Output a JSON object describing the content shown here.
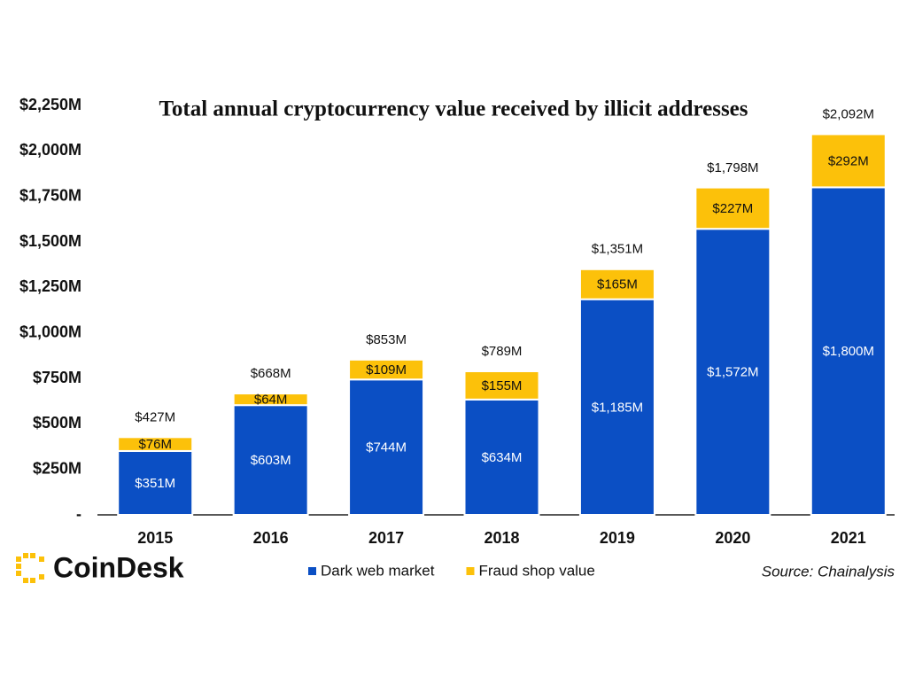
{
  "brand": "CoinDesk",
  "chart_data": {
    "type": "stacked_bar",
    "title": "Total annual cryptocurrency value received by illicit addresses",
    "source": "Source: Chainalysis",
    "categories": [
      "2015",
      "2016",
      "2017",
      "2018",
      "2019",
      "2020",
      "2021"
    ],
    "series": [
      {
        "name": "Dark web market",
        "color": "#0b4fc4",
        "values": [
          351,
          603,
          744,
          634,
          1185,
          1572,
          1800
        ],
        "value_labels": [
          "$351M",
          "$603M",
          "$744M",
          "$634M",
          "$1,185M",
          "$1,572M",
          "$1,800M"
        ]
      },
      {
        "name": "Fraud shop value",
        "color": "#fcc10a",
        "values": [
          76,
          64,
          109,
          155,
          165,
          227,
          292
        ],
        "value_labels": [
          "$76M",
          "$64M",
          "$109M",
          "$155M",
          "$165M",
          "$227M",
          "$292M"
        ]
      }
    ],
    "totals": {
      "values": [
        427,
        668,
        853,
        789,
        1351,
        1798,
        2092
      ],
      "value_labels": [
        "$427M",
        "$668M",
        "$853M",
        "$789M",
        "$1,351M",
        "$1,798M",
        "$2,092M"
      ]
    },
    "ylim": [
      0,
      2250
    ],
    "yticks": [
      {
        "value": 0,
        "label": "-"
      },
      {
        "value": 250,
        "label": "$250M"
      },
      {
        "value": 500,
        "label": "$500M"
      },
      {
        "value": 750,
        "label": "$750M"
      },
      {
        "value": 1000,
        "label": "$1,000M"
      },
      {
        "value": 1250,
        "label": "$1,250M"
      },
      {
        "value": 1500,
        "label": "$1,500M"
      },
      {
        "value": 1750,
        "label": "$1,750M"
      },
      {
        "value": 2000,
        "label": "$2,000M"
      },
      {
        "value": 2250,
        "label": "$2,250M"
      }
    ],
    "grid": false,
    "legend": "bottom"
  }
}
